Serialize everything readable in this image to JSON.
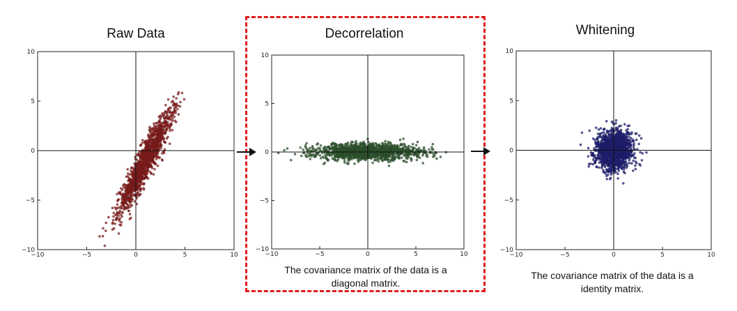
{
  "panels": {
    "raw": {
      "title": "Raw Data",
      "caption_lines": []
    },
    "decor": {
      "title": "Decorrelation",
      "caption_lines": [
        "The covariance matrix of the data is a",
        "diagonal matrix."
      ]
    },
    "white": {
      "title": "Whitening",
      "caption_lines": [
        "The covariance matrix of the data is a",
        "identity matrix."
      ]
    }
  },
  "colors": {
    "raw_points": "#8b1a1a",
    "decor_points": "#2f5a2f",
    "white_points": "#1c1c7a",
    "highlight_border": "#e01b1b"
  },
  "chart_data": [
    {
      "type": "scatter",
      "title": "Raw Data",
      "xlim": [
        -10,
        10
      ],
      "ylim": [
        -10,
        10
      ],
      "xticks": [
        -10,
        -5,
        0,
        5,
        10
      ],
      "yticks": [
        -10,
        -5,
        0,
        5,
        10
      ],
      "grid": false,
      "distribution": {
        "mean": [
          1,
          -1
        ],
        "std_major": 3.0,
        "std_minor": 0.45,
        "angle_deg": 63,
        "count": 1400
      }
    },
    {
      "type": "scatter",
      "title": "Decorrelation",
      "xlim": [
        -10,
        10
      ],
      "ylim": [
        -10,
        10
      ],
      "xticks": [
        -10,
        -5,
        0,
        5,
        10
      ],
      "yticks": [
        -10,
        -5,
        0,
        5,
        10
      ],
      "grid": false,
      "distribution": {
        "mean": [
          0,
          0
        ],
        "std_major": 2.8,
        "std_minor": 0.42,
        "angle_deg": 0,
        "count": 1400
      }
    },
    {
      "type": "scatter",
      "title": "Whitening",
      "xlim": [
        -10,
        10
      ],
      "ylim": [
        -10,
        10
      ],
      "xticks": [
        -10,
        -5,
        0,
        5,
        10
      ],
      "yticks": [
        -10,
        -5,
        0,
        5,
        10
      ],
      "grid": false,
      "distribution": {
        "mean": [
          0,
          0
        ],
        "std_major": 1.0,
        "std_minor": 1.0,
        "angle_deg": 0,
        "count": 1400
      }
    }
  ]
}
